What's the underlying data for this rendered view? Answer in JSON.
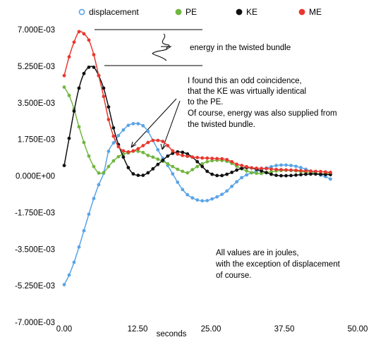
{
  "chart_data": {
    "type": "line",
    "title": "",
    "xlabel": "seconds",
    "ylabel": "",
    "xlim": [
      0,
      50
    ],
    "ylim": [
      -0.007,
      0.007
    ],
    "grid": false,
    "legend_position": "top",
    "x_tick_labels": [
      "0.00",
      "12.50",
      "25.00",
      "37.50",
      "50.00"
    ],
    "y_tick_labels": [
      "7.000E-03",
      "5.250E-03",
      "3.500E-03",
      "1.750E-03",
      "0.000E+00",
      "-1.750E-03",
      "-3.500E-03",
      "-5.250E-03",
      "-7.000E-03"
    ],
    "x": [
      0.0,
      0.84,
      1.68,
      2.52,
      3.36,
      4.2,
      5.04,
      5.88,
      6.72,
      7.56,
      8.4,
      9.24,
      10.08,
      10.92,
      11.76,
      12.6,
      13.44,
      14.28,
      15.12,
      15.96,
      16.8,
      17.64,
      18.48,
      19.32,
      20.16,
      21.0,
      21.84,
      22.68,
      23.52,
      24.36,
      25.2,
      26.04,
      26.88,
      27.72,
      28.56,
      29.4,
      30.24,
      31.08,
      31.92,
      32.76,
      33.6,
      34.44,
      35.28,
      36.12,
      36.96,
      37.8,
      38.64,
      39.48,
      40.32,
      41.16,
      42.0,
      42.84,
      43.68,
      44.52,
      45.36
    ],
    "series": [
      {
        "name": "displacement",
        "color": "#5aa4e6",
        "values": [
          -0.0052,
          -0.00474,
          -0.00413,
          -0.0034,
          -0.00262,
          -0.00183,
          -0.00108,
          -0.00042,
          0.00013,
          0.00118,
          0.00158,
          0.00193,
          0.0022,
          0.00242,
          0.0025,
          0.0025,
          0.0024,
          0.00213,
          0.0017,
          0.00125,
          0.00085,
          0.0005,
          0.0001,
          -0.0003,
          -0.00065,
          -0.0009,
          -0.00105,
          -0.00115,
          -0.00119,
          -0.00118,
          -0.0011,
          -0.001,
          -0.00088,
          -0.00072,
          -0.0005,
          -0.00028,
          -8e-05,
          5e-05,
          0.00015,
          0.00022,
          0.0003,
          0.00038,
          0.00044,
          0.0005,
          0.00052,
          0.00052,
          0.0005,
          0.00046,
          0.0004,
          0.00032,
          0.00023,
          0.00012,
          4e-05,
          -3e-05,
          -0.00015
        ]
      },
      {
        "name": "PE",
        "color": "#71b63f",
        "values": [
          0.00425,
          0.00385,
          0.0032,
          0.00235,
          0.0016,
          0.00095,
          0.00045,
          0.00014,
          0.00016,
          0.00045,
          0.00072,
          0.00092,
          0.00105,
          0.0011,
          0.00118,
          0.00118,
          0.00112,
          0.00098,
          0.0009,
          0.0008,
          0.0007,
          0.00058,
          0.00045,
          0.00032,
          0.00022,
          0.00015,
          0.0003,
          0.00045,
          0.00058,
          0.00068,
          0.00073,
          0.00075,
          0.00074,
          0.0007,
          0.0006,
          0.00046,
          0.00034,
          0.00024,
          0.00016,
          0.00013,
          0.00012,
          0.00016,
          0.0002,
          0.00024,
          0.00026,
          0.00027,
          0.00026,
          0.00024,
          0.00021,
          0.00018,
          0.00015,
          0.00012,
          0.0001,
          0.00011,
          0.00012
        ]
      },
      {
        "name": "KE",
        "color": "#111111",
        "values": [
          0.0005,
          0.0018,
          0.0031,
          0.0042,
          0.0049,
          0.0052,
          0.0052,
          0.0048,
          0.0042,
          0.0033,
          0.0023,
          0.0015,
          0.0009,
          0.0004,
          0.0001,
          3e-05,
          3e-05,
          0.00015,
          0.00034,
          0.00055,
          0.00075,
          0.00095,
          0.00108,
          0.00115,
          0.00113,
          0.00105,
          0.0009,
          0.00068,
          0.00045,
          0.00022,
          8e-05,
          2e-05,
          2e-05,
          8e-05,
          0.00017,
          0.00028,
          0.00036,
          0.0004,
          0.00038,
          0.00032,
          0.00024,
          0.00016,
          8e-05,
          3e-05,
          1e-05,
          1e-05,
          2e-05,
          4e-05,
          6e-05,
          8e-05,
          9e-05,
          9e-05,
          8e-05,
          7e-05,
          6e-05
        ]
      },
      {
        "name": "ME",
        "color": "#e8372e",
        "values": [
          0.0048,
          0.0057,
          0.0064,
          0.0069,
          0.0068,
          0.0065,
          0.0058,
          0.0048,
          0.0038,
          0.0027,
          0.0019,
          0.0014,
          0.0012,
          0.00115,
          0.0012,
          0.0013,
          0.00145,
          0.0016,
          0.0017,
          0.0017,
          0.00165,
          0.00145,
          0.0012,
          0.00105,
          0.00098,
          0.00094,
          0.0009,
          0.00088,
          0.00086,
          0.00085,
          0.00084,
          0.00083,
          0.00082,
          0.00078,
          0.00068,
          0.00056,
          0.0005,
          0.00044,
          0.00039,
          0.00037,
          0.00036,
          0.00035,
          0.00033,
          0.00031,
          0.0003,
          0.00029,
          0.00028,
          0.00027,
          0.00025,
          0.00024,
          0.00023,
          0.00022,
          0.00021,
          0.00019,
          0.00017
        ]
      }
    ],
    "annotations": {
      "bundle_label": "energy in the twisted bundle",
      "note_lines": [
        "I found this an odd coincidence,",
        "that the KE was virtually identical",
        "to the PE.",
        "Of course, energy was  also   supplied from",
        "the twisted bundle."
      ],
      "units_lines": [
        "All values are in joules,",
        "with the exception of displacement",
        "of course."
      ]
    }
  }
}
